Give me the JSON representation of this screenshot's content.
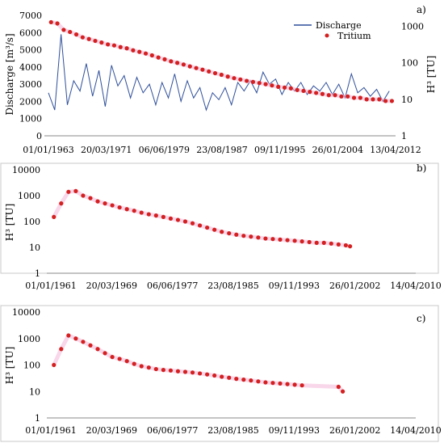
{
  "chart_data": [
    {
      "panel": "a)",
      "type": "line",
      "x_ticks": [
        "01/01/1963",
        "20/03/1971",
        "06/06/1979",
        "23/08/1987",
        "09/11/1995",
        "26/01/2004",
        "13/04/2012"
      ],
      "x_range": [
        "01/01/1963",
        "01/01/2018"
      ],
      "ylabel": "Discharge [m³/s]",
      "ylim": [
        0,
        7000
      ],
      "y_ticks": [
        0,
        1000,
        2000,
        3000,
        4000,
        5000,
        6000,
        7000
      ],
      "y2label": "H³ [TU]",
      "y2_scale": "log",
      "y2lim": [
        1,
        2000
      ],
      "y2_ticks": [
        1,
        10,
        100,
        1000
      ],
      "legend": {
        "placement": "top-right",
        "entries": [
          "Discharge",
          "Tritium"
        ]
      },
      "series": [
        {
          "name": "Discharge",
          "axis": "left",
          "style": "line",
          "color": "#2f4f9a",
          "x": [
            "1963-01",
            "1964-01",
            "1965-01",
            "1966-01",
            "1967-01",
            "1968-01",
            "1969-01",
            "1970-01",
            "1971-01",
            "1972-01",
            "1973-01",
            "1974-01",
            "1975-01",
            "1976-01",
            "1977-01",
            "1978-01",
            "1979-01",
            "1980-01",
            "1981-01",
            "1982-01",
            "1983-01",
            "1984-01",
            "1985-01",
            "1986-01",
            "1987-01",
            "1988-01",
            "1989-01",
            "1990-01",
            "1991-01",
            "1992-01",
            "1993-01",
            "1994-01",
            "1995-01",
            "1996-01",
            "1997-01",
            "1998-01",
            "1999-01",
            "2000-01",
            "2001-01",
            "2002-01",
            "2003-01",
            "2004-01",
            "2005-01",
            "2006-01",
            "2007-01",
            "2008-01",
            "2009-01",
            "2010-01",
            "2011-01",
            "2012-01",
            "2013-01",
            "2014-01",
            "2015-01",
            "2016-01",
            "2017-01"
          ],
          "y": [
            2500,
            1500,
            5900,
            1800,
            3200,
            2600,
            4200,
            2300,
            3800,
            1700,
            4100,
            2900,
            3500,
            2200,
            3400,
            2500,
            3000,
            1800,
            3100,
            2200,
            3600,
            2000,
            3200,
            2200,
            2800,
            1500,
            2500,
            2100,
            2800,
            1800,
            3100,
            2600,
            3200,
            2500,
            3700,
            3000,
            3300,
            2400,
            3100,
            2600,
            3100,
            2400,
            2900,
            2600,
            3100,
            2400,
            3000,
            2200,
            3600,
            2500,
            2800,
            2300,
            2700,
            2000,
            2600
          ]
        },
        {
          "name": "Tritium",
          "axis": "right",
          "style": "markers",
          "color": "#d42020",
          "x": [
            "1963-06",
            "1964-06",
            "1965-06",
            "1966-06",
            "1967-06",
            "1968-06",
            "1969-06",
            "1970-06",
            "1971-06",
            "1972-06",
            "1973-06",
            "1974-06",
            "1975-06",
            "1976-06",
            "1977-06",
            "1978-06",
            "1979-06",
            "1980-06",
            "1981-06",
            "1982-06",
            "1983-06",
            "1984-06",
            "1985-06",
            "1986-06",
            "1987-06",
            "1988-06",
            "1989-06",
            "1990-06",
            "1991-06",
            "1992-06",
            "1993-06",
            "1994-06",
            "1995-06",
            "1996-06",
            "1997-06",
            "1998-06",
            "1999-06",
            "2000-06",
            "2001-06",
            "2002-06",
            "2003-06",
            "2004-06",
            "2005-06",
            "2006-06",
            "2007-06",
            "2008-06",
            "2009-06",
            "2010-06",
            "2011-06",
            "2012-06",
            "2013-06",
            "2014-06",
            "2015-06",
            "2016-06",
            "2017-06"
          ],
          "y": [
            1300,
            1200,
            800,
            700,
            600,
            500,
            450,
            400,
            360,
            320,
            300,
            270,
            250,
            220,
            200,
            180,
            160,
            140,
            125,
            110,
            100,
            90,
            80,
            72,
            65,
            58,
            52,
            47,
            42,
            38,
            35,
            32,
            30,
            28,
            26,
            24,
            22,
            21,
            20,
            18,
            17,
            16,
            15,
            14,
            13,
            13,
            12,
            12,
            11,
            11,
            10,
            10,
            10,
            9,
            9
          ]
        }
      ]
    },
    {
      "panel": "b)",
      "type": "scatter",
      "x_ticks": [
        "01/01/1961",
        "20/03/1969",
        "06/06/1977",
        "23/08/1985",
        "09/11/1993",
        "26/01/2002",
        "14/04/2010"
      ],
      "x_range": [
        "01/01/1961",
        "01/01/2011"
      ],
      "ylabel": "H³ [TU]",
      "y_scale": "log",
      "ylim": [
        1,
        10000
      ],
      "y_ticks": [
        1,
        10,
        100,
        1000,
        10000
      ],
      "series": [
        {
          "color": "#d42020",
          "x": [
            "1961-06",
            "1962-06",
            "1963-06",
            "1964-06",
            "1965-06",
            "1966-06",
            "1967-06",
            "1968-06",
            "1969-06",
            "1970-06",
            "1971-06",
            "1972-06",
            "1973-06",
            "1974-06",
            "1975-06",
            "1976-06",
            "1977-06",
            "1978-06",
            "1979-06",
            "1980-06",
            "1981-06",
            "1982-06",
            "1983-06",
            "1984-06",
            "1985-06",
            "1986-06",
            "1987-06",
            "1988-06",
            "1989-06",
            "1990-06",
            "1991-06",
            "1992-06",
            "1993-06",
            "1994-06",
            "1995-06",
            "1996-06",
            "1997-06",
            "1998-06",
            "1999-06",
            "2000-06",
            "2001-06",
            "2002-01"
          ],
          "y": [
            150,
            500,
            1400,
            1500,
            1000,
            800,
            600,
            500,
            420,
            350,
            300,
            260,
            220,
            190,
            170,
            150,
            130,
            115,
            100,
            85,
            70,
            58,
            48,
            40,
            35,
            31,
            28,
            26,
            24,
            22,
            21,
            20,
            19,
            18,
            17,
            16,
            15,
            15,
            14,
            13,
            12,
            11
          ]
        }
      ]
    },
    {
      "panel": "c)",
      "type": "scatter",
      "x_ticks": [
        "01/01/1961",
        "20/03/1969",
        "06/06/1977",
        "23/08/1985",
        "09/11/1993",
        "26/01/2002",
        "14/04/2010"
      ],
      "x_range": [
        "01/01/1961",
        "01/01/2011"
      ],
      "ylabel": "H³ [TU]",
      "y_scale": "log",
      "ylim": [
        1,
        10000
      ],
      "y_ticks": [
        1,
        10,
        100,
        1000,
        10000
      ],
      "series": [
        {
          "color": "#d42020",
          "x": [
            "1961-06",
            "1962-06",
            "1963-06",
            "1964-06",
            "1965-06",
            "1966-06",
            "1967-06",
            "1968-06",
            "1969-06",
            "1970-06",
            "1971-06",
            "1972-06",
            "1973-06",
            "1974-06",
            "1975-06",
            "1976-06",
            "1977-06",
            "1978-06",
            "1979-06",
            "1980-06",
            "1981-06",
            "1982-06",
            "1983-06",
            "1984-06",
            "1985-06",
            "1986-06",
            "1987-06",
            "1988-06",
            "1989-06",
            "1990-06",
            "1991-06",
            "1992-06",
            "1993-06",
            "1994-06",
            "1995-06",
            "2000-06",
            "2001-01"
          ],
          "y": [
            100,
            400,
            1300,
            1000,
            750,
            550,
            400,
            280,
            200,
            170,
            140,
            110,
            90,
            80,
            70,
            65,
            62,
            58,
            55,
            52,
            48,
            44,
            40,
            36,
            33,
            30,
            28,
            26,
            24,
            22,
            21,
            20,
            19,
            18,
            17,
            15,
            10
          ]
        }
      ]
    }
  ]
}
